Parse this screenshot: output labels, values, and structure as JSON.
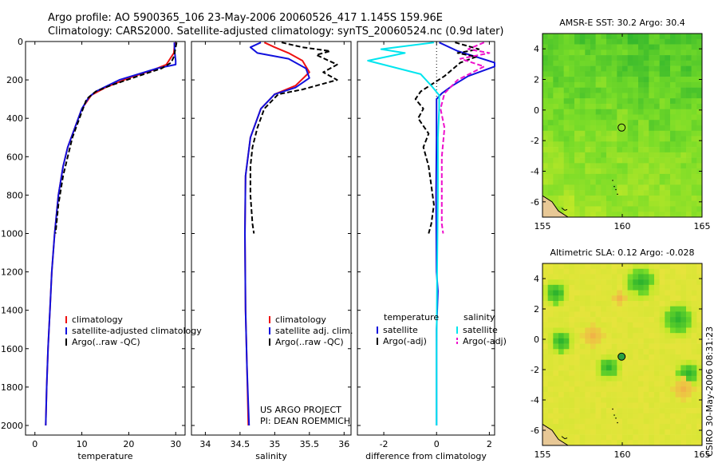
{
  "figure": {
    "title_line1": "Argo profile: AO 5900365_106 23-May-2006 20060526_417 1.145S 159.96E",
    "title_line2": "Climatology: CARS2000. Satellite-adjusted climatology: synTS_20060524.nc (0.9d later)",
    "credit_line1": "US ARGO PROJECT",
    "credit_line2": "PI: DEAN ROEMMICH",
    "side_stamp": "CSIRO 30-May-2006 08:31:23"
  },
  "colors": {
    "climatology": "#ee1111",
    "satellite": "#1111dd",
    "argo": "#000000",
    "sal_satellite": "#00e5ee",
    "sal_argo": "#ee11cc"
  },
  "chart_data": [
    {
      "id": "temperature",
      "type": "line",
      "xlabel": "temperature",
      "xlim": [
        -2,
        32
      ],
      "ylim": [
        2050,
        0
      ],
      "xticks": [
        0,
        10,
        20,
        30
      ],
      "yticks": [
        0,
        200,
        400,
        600,
        800,
        1000,
        1200,
        1400,
        1600,
        1800,
        2000
      ],
      "series": [
        {
          "name": "climatology",
          "style": "solid",
          "color": "climatology",
          "points": [
            [
              29.8,
              5
            ],
            [
              29.6,
              60
            ],
            [
              28,
              120
            ],
            [
              25,
              150
            ],
            [
              20,
              190
            ],
            [
              15,
              240
            ],
            [
              12,
              280
            ],
            [
              10,
              350
            ],
            [
              8.5,
              450
            ],
            [
              7,
              550
            ],
            [
              6,
              650
            ],
            [
              5,
              800
            ],
            [
              4.2,
              1000
            ],
            [
              3.6,
              1200
            ],
            [
              3.2,
              1400
            ],
            [
              2.8,
              1600
            ],
            [
              2.5,
              1800
            ],
            [
              2.3,
              2000
            ]
          ]
        },
        {
          "name": "satellite-adjusted climatology",
          "style": "solid",
          "color": "satellite",
          "points": [
            [
              29.7,
              5
            ],
            [
              29.8,
              60
            ],
            [
              30,
              100
            ],
            [
              30,
              120
            ],
            [
              26,
              140
            ],
            [
              18,
              200
            ],
            [
              13,
              260
            ],
            [
              11.5,
              290
            ],
            [
              10,
              350
            ],
            [
              8.5,
              450
            ],
            [
              7,
              550
            ],
            [
              6,
              650
            ],
            [
              5,
              800
            ],
            [
              4.2,
              1000
            ],
            [
              3.6,
              1200
            ],
            [
              3.2,
              1400
            ],
            [
              2.8,
              1600
            ],
            [
              2.5,
              1800
            ],
            [
              2.3,
              2000
            ]
          ]
        },
        {
          "name": "Argo(..raw -QC)",
          "style": "dashed",
          "color": "argo",
          "points": [
            [
              30.2,
              5
            ],
            [
              30,
              30
            ],
            [
              29.6,
              80
            ],
            [
              29,
              110
            ],
            [
              27,
              140
            ],
            [
              22,
              180
            ],
            [
              16,
              230
            ],
            [
              13,
              260
            ],
            [
              11,
              300
            ],
            [
              9.5,
              400
            ],
            [
              8,
              500
            ],
            [
              7,
              600
            ],
            [
              6,
              700
            ],
            [
              5,
              850
            ],
            [
              4.4,
              1000
            ]
          ]
        }
      ],
      "legend": {
        "position": "bottom-left",
        "entries": [
          {
            "label": "climatology",
            "color": "climatology",
            "style": "solid"
          },
          {
            "label": "satellite-adjusted climatology",
            "color": "satellite",
            "style": "solid"
          },
          {
            "label": "Argo(..raw -QC)",
            "color": "argo",
            "style": "solid"
          }
        ]
      }
    },
    {
      "id": "salinity",
      "type": "line",
      "xlabel": "salinity",
      "xlim": [
        33.8,
        36.1
      ],
      "ylim": [
        2050,
        0
      ],
      "xticks": [
        34,
        34.5,
        35,
        35.5,
        36
      ],
      "yticks": [
        0,
        200,
        400,
        600,
        800,
        1000,
        1200,
        1400,
        1600,
        1800,
        2000
      ],
      "series": [
        {
          "name": "climatology",
          "style": "solid",
          "color": "climatology",
          "points": [
            [
              34.85,
              5
            ],
            [
              35,
              30
            ],
            [
              35.2,
              60
            ],
            [
              35.4,
              100
            ],
            [
              35.5,
              160
            ],
            [
              35.3,
              230
            ],
            [
              35,
              275
            ],
            [
              34.8,
              350
            ],
            [
              34.65,
              500
            ],
            [
              34.58,
              700
            ],
            [
              34.57,
              1000
            ],
            [
              34.58,
              1400
            ],
            [
              34.6,
              1700
            ],
            [
              34.62,
              2000
            ]
          ]
        },
        {
          "name": "satellite adj. clim.",
          "style": "solid",
          "color": "satellite",
          "points": [
            [
              34.8,
              5
            ],
            [
              34.65,
              30
            ],
            [
              34.75,
              60
            ],
            [
              35.2,
              90
            ],
            [
              35.45,
              140
            ],
            [
              35.5,
              190
            ],
            [
              35.3,
              240
            ],
            [
              35,
              275
            ],
            [
              34.8,
              350
            ],
            [
              34.65,
              500
            ],
            [
              34.58,
              700
            ],
            [
              34.57,
              1000
            ],
            [
              34.58,
              1400
            ],
            [
              34.6,
              1700
            ],
            [
              34.63,
              2000
            ]
          ]
        },
        {
          "name": "Argo(..raw -QC)",
          "style": "dashed",
          "color": "argo",
          "points": [
            [
              35.1,
              5
            ],
            [
              35.4,
              30
            ],
            [
              35.8,
              50
            ],
            [
              35.6,
              70
            ],
            [
              35.9,
              120
            ],
            [
              35.7,
              160
            ],
            [
              35.9,
              200
            ],
            [
              35.4,
              250
            ],
            [
              35.05,
              275
            ],
            [
              34.85,
              350
            ],
            [
              34.75,
              450
            ],
            [
              34.68,
              550
            ],
            [
              34.65,
              650
            ],
            [
              34.65,
              800
            ],
            [
              34.68,
              950
            ],
            [
              34.7,
              1000
            ]
          ]
        }
      ],
      "legend": {
        "position": "bottom-left",
        "entries": [
          {
            "label": "climatology",
            "color": "climatology",
            "style": "solid"
          },
          {
            "label": "satellite adj. clim.",
            "color": "satellite",
            "style": "solid"
          },
          {
            "label": "Argo(..raw -QC)",
            "color": "argo",
            "style": "solid"
          }
        ]
      }
    },
    {
      "id": "difference",
      "type": "line",
      "xlabel": "difference from climatology",
      "xlim": [
        -3,
        2.2
      ],
      "ylim": [
        2050,
        0
      ],
      "xticks": [
        -2,
        0,
        2
      ],
      "yticks": [
        0,
        200,
        400,
        600,
        800,
        1000,
        1200,
        1400,
        1600,
        1800,
        2000
      ],
      "series": [
        {
          "name": "temperature satellite",
          "style": "solid",
          "color": "satellite",
          "points": [
            [
              0.1,
              5
            ],
            [
              0.8,
              50
            ],
            [
              1.5,
              80
            ],
            [
              2.2,
              110
            ],
            [
              2.2,
              130
            ],
            [
              1.2,
              180
            ],
            [
              0.6,
              230
            ],
            [
              0.2,
              270
            ],
            [
              0,
              300
            ],
            [
              0,
              500
            ],
            [
              -0.02,
              800
            ],
            [
              0,
              1200
            ],
            [
              0.05,
              1300
            ],
            [
              0,
              1500
            ],
            [
              0,
              2000
            ]
          ]
        },
        {
          "name": "temperature Argo(-adj)",
          "style": "dashed",
          "color": "argo",
          "points": [
            [
              0.7,
              5
            ],
            [
              1.6,
              40
            ],
            [
              0.8,
              60
            ],
            [
              1.5,
              80
            ],
            [
              0.9,
              110
            ],
            [
              0.3,
              180
            ],
            [
              -0.6,
              260
            ],
            [
              -0.8,
              300
            ],
            [
              -0.5,
              350
            ],
            [
              -0.7,
              400
            ],
            [
              -0.3,
              480
            ],
            [
              -0.5,
              550
            ],
            [
              -0.3,
              650
            ],
            [
              -0.2,
              750
            ],
            [
              -0.1,
              850
            ],
            [
              -0.2,
              950
            ],
            [
              -0.3,
              1000
            ]
          ]
        },
        {
          "name": "salinity satellite",
          "style": "solid",
          "color": "sal_satellite",
          "points": [
            [
              -0.1,
              5
            ],
            [
              -2.1,
              40
            ],
            [
              -1.2,
              60
            ],
            [
              -2.6,
              100
            ],
            [
              -0.6,
              170
            ],
            [
              -0.2,
              230
            ],
            [
              0.1,
              280
            ],
            [
              0.1,
              350
            ],
            [
              0.05,
              500
            ],
            [
              0.05,
              800
            ],
            [
              0.02,
              1200
            ],
            [
              0,
              1600
            ],
            [
              0,
              2000
            ]
          ]
        },
        {
          "name": "salinity Argo(-adj)",
          "style": "dashed",
          "color": "sal_argo",
          "points": [
            [
              1.8,
              5
            ],
            [
              1.2,
              40
            ],
            [
              2.0,
              60
            ],
            [
              0.9,
              90
            ],
            [
              1.8,
              130
            ],
            [
              0.8,
              200
            ],
            [
              0.3,
              270
            ],
            [
              0.15,
              350
            ],
            [
              0.3,
              450
            ],
            [
              0.2,
              600
            ],
            [
              0.2,
              800
            ],
            [
              0.2,
              950
            ],
            [
              0.25,
              1000
            ]
          ]
        }
      ],
      "refline": {
        "x": 0,
        "style": "dotted",
        "ymax": 300
      },
      "legend": {
        "position": "bottom",
        "temperature_heading": "temperature",
        "salinity_heading": "salinity",
        "entries": [
          {
            "label": "satellite",
            "group": "temperature",
            "color": "satellite",
            "style": "solid"
          },
          {
            "label": "Argo(-adj)",
            "group": "temperature",
            "color": "argo",
            "style": "solid"
          },
          {
            "label": "satellite",
            "group": "salinity",
            "color": "sal_satellite",
            "style": "solid"
          },
          {
            "label": "Argo(-adj)",
            "group": "salinity",
            "color": "sal_argo",
            "style": "dashed"
          }
        ]
      }
    },
    {
      "id": "sst_map",
      "type": "heatmap",
      "title": "AMSR-E SST: 30.2 Argo: 30.4",
      "xlim": [
        155,
        165
      ],
      "ylim": [
        -7,
        5
      ],
      "xticks": [
        155,
        160,
        165
      ],
      "yticks": [
        -6,
        -4,
        -2,
        0,
        2,
        4
      ],
      "marker": {
        "lon": 159.96,
        "lat": -1.145,
        "filled": false
      },
      "colormap": "green-yellow"
    },
    {
      "id": "sla_map",
      "type": "heatmap",
      "title": "Altimetric SLA: 0.12 Argo: -0.028",
      "xlim": [
        155,
        165
      ],
      "ylim": [
        -7,
        5
      ],
      "xticks": [
        155,
        160,
        165
      ],
      "yticks": [
        -6,
        -4,
        -2,
        0,
        2,
        4
      ],
      "marker": {
        "lon": 159.96,
        "lat": -1.145,
        "filled": true
      },
      "colormap": "green-yellow-orange"
    }
  ]
}
